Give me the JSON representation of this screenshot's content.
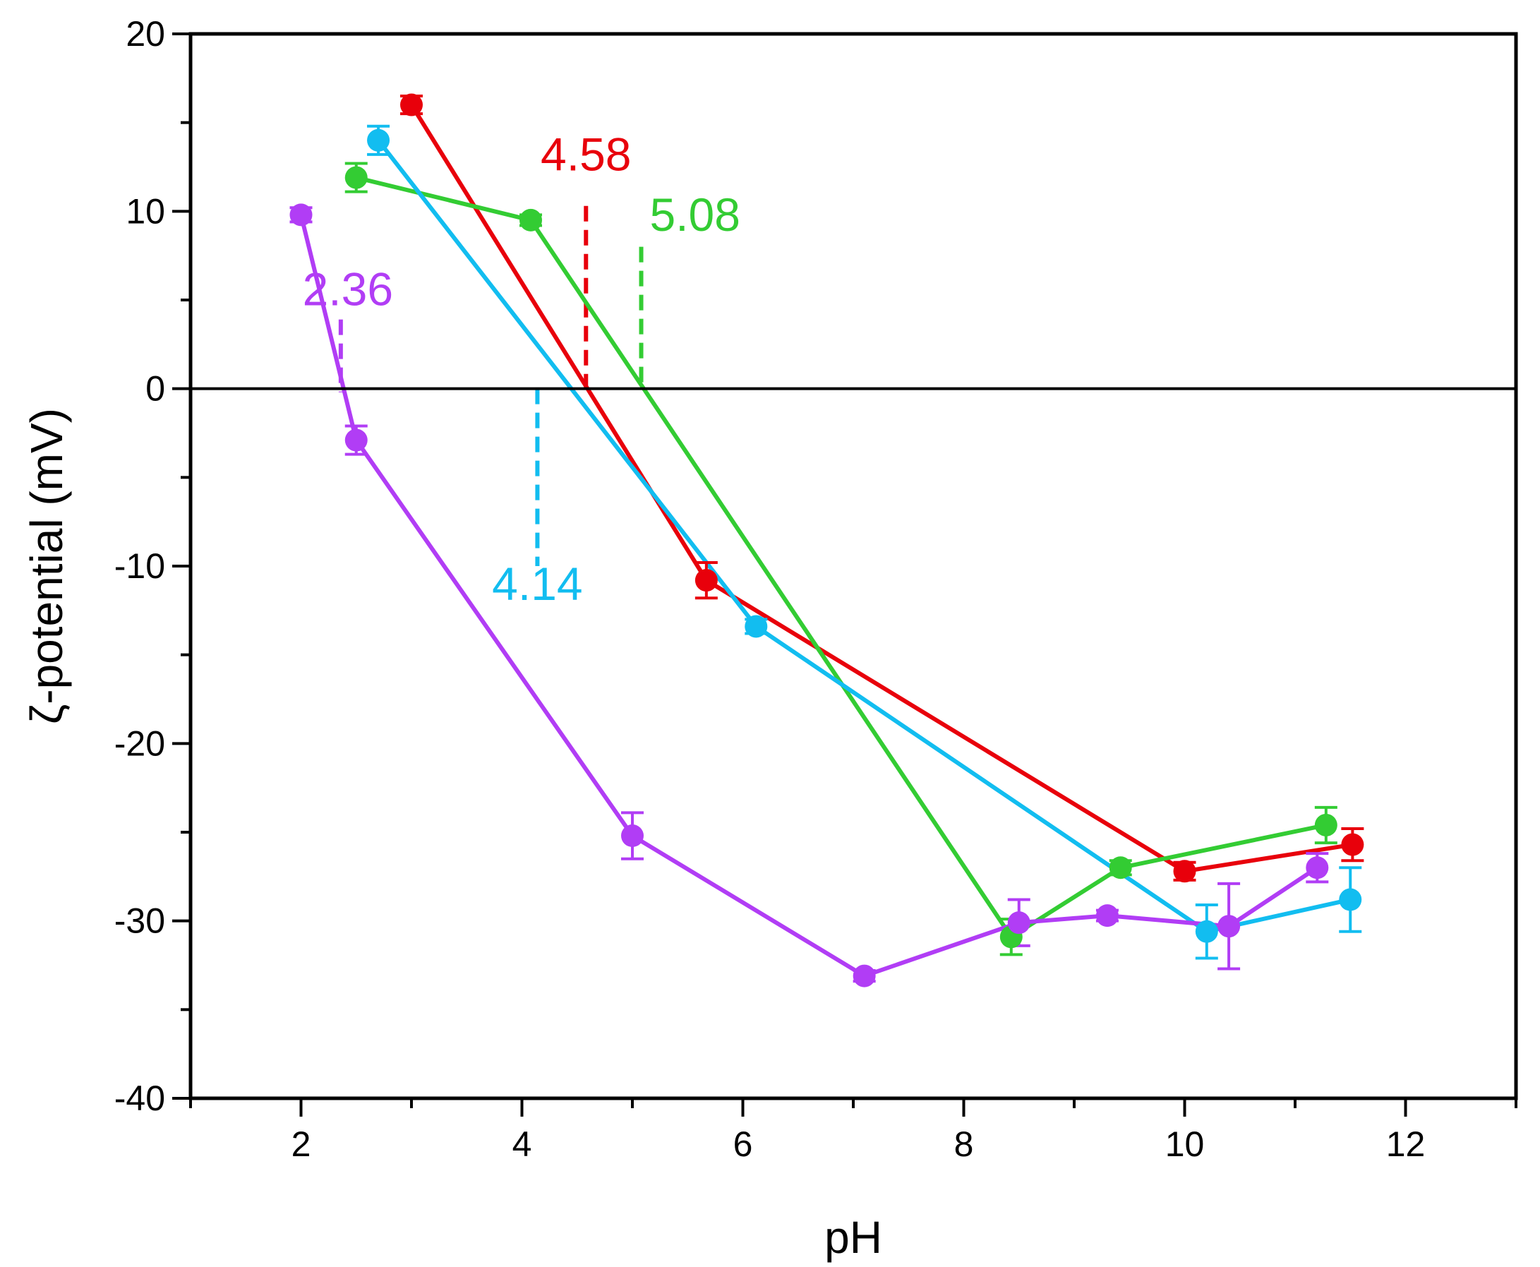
{
  "chart_data": {
    "type": "line",
    "title": "",
    "xlabel": "pH",
    "ylabel": "ζ-potential (mV)",
    "xlim": [
      1,
      13
    ],
    "ylim": [
      -40,
      20
    ],
    "x_ticks": [
      2,
      4,
      6,
      8,
      10,
      12
    ],
    "x_tick_labels": [
      "2",
      "4",
      "6",
      "8",
      "10",
      "12"
    ],
    "y_ticks": [
      -40,
      -30,
      -20,
      -10,
      0,
      10,
      20
    ],
    "y_tick_labels": [
      "-40",
      "-30",
      "-20",
      "-10",
      "0",
      "10",
      "20"
    ],
    "zero_line": true,
    "grid": false,
    "legend": "none",
    "series": [
      {
        "name": "red",
        "color": "#e8000b",
        "x": [
          3.0,
          5.67,
          10.0,
          11.52
        ],
        "y": [
          16.0,
          -10.8,
          -27.2,
          -25.7
        ],
        "err": [
          0.5,
          1.0,
          0.5,
          0.9
        ],
        "pzc": 4.58,
        "pzc_label": "4.58"
      },
      {
        "name": "green",
        "color": "#33cc33",
        "x": [
          2.5,
          4.08,
          8.43,
          9.42,
          11.28
        ],
        "y": [
          11.9,
          9.5,
          -30.9,
          -27.0,
          -24.6
        ],
        "err": [
          0.8,
          0.3,
          1.0,
          0.4,
          1.0
        ],
        "pzc": 5.08,
        "pzc_label": "5.08"
      },
      {
        "name": "blue",
        "color": "#12bdf0",
        "x": [
          2.7,
          6.12,
          10.2,
          11.5
        ],
        "y": [
          14.0,
          -13.4,
          -30.6,
          -28.8
        ],
        "err": [
          0.8,
          0.4,
          1.5,
          1.8
        ],
        "pzc": 4.14,
        "pzc_label": "4.14"
      },
      {
        "name": "purple",
        "color": "#b13df5",
        "x": [
          2.0,
          2.5,
          5.0,
          7.1,
          8.5,
          9.3,
          10.4,
          11.2
        ],
        "y": [
          9.8,
          -2.9,
          -25.2,
          -33.1,
          -30.1,
          -29.7,
          -30.3,
          -27.0
        ],
        "err": [
          0.4,
          0.8,
          1.3,
          0.3,
          1.3,
          0.3,
          2.4,
          0.8
        ],
        "pzc": 2.36,
        "pzc_label": "2.36"
      }
    ]
  }
}
